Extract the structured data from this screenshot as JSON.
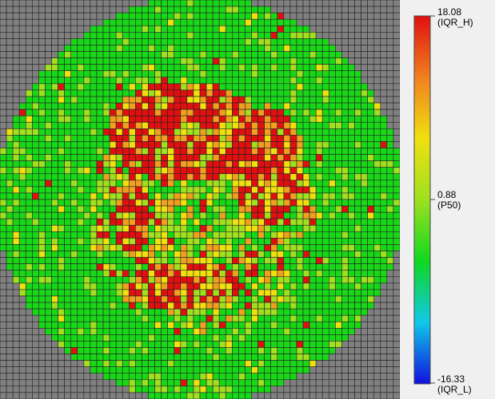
{
  "chart_data": {
    "type": "heatmap",
    "title": "",
    "grid": {
      "columns": 62,
      "rows": 62
    },
    "colorbar": {
      "orientation": "vertical",
      "placement": "right",
      "max": {
        "value": 18.08,
        "text": "18.08",
        "tag": "(IQR_H)"
      },
      "mid": {
        "value": 0.88,
        "text": "0.88",
        "tag": "(P50)"
      },
      "min": {
        "value": -16.33,
        "text": "-16.33",
        "tag": "(IQR_L)"
      },
      "colormap": [
        "#1010e0",
        "#10c8e8",
        "#10d820",
        "#9ee020",
        "#f0e010",
        "#f08020",
        "#e01010"
      ]
    },
    "colors": {
      "no_die": "#808080",
      "low": "#18d818",
      "mid": "#a0e020",
      "warm": "#f0e010",
      "orange": "#f0a020",
      "high": "#e01010",
      "cell_border": "#222222"
    },
    "hotspot_regions": [
      {
        "cx": 28,
        "cy": 20,
        "rx": 12,
        "ry": 8,
        "level": "high"
      },
      {
        "cx": 41,
        "cy": 25,
        "rx": 6,
        "ry": 9,
        "level": "high"
      },
      {
        "cx": 20,
        "cy": 33,
        "rx": 3,
        "ry": 6,
        "level": "high"
      },
      {
        "cx": 28,
        "cy": 44,
        "rx": 9,
        "ry": 4,
        "level": "high"
      },
      {
        "cx": 31,
        "cy": 33,
        "rx": 18,
        "ry": 18,
        "level": "mid"
      }
    ]
  }
}
